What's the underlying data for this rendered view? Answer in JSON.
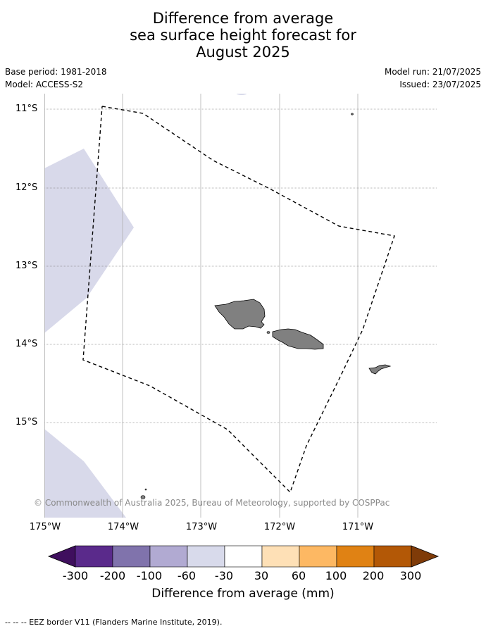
{
  "title": {
    "line1": "Difference from average",
    "line2": "sea surface height forecast for",
    "line3": "August 2025"
  },
  "meta": {
    "base_period": "Base period: 1981-2018",
    "model": "Model: ACCESS-S2",
    "model_run": "Model run: 21/07/2025",
    "issued": "Issued: 23/07/2025"
  },
  "map": {
    "lat_labels": [
      "11°S",
      "12°S",
      "13°S",
      "14°S",
      "15°S"
    ],
    "lon_labels": [
      "175°W",
      "174°W",
      "173°W",
      "172°W",
      "171°W"
    ],
    "copyright": "© Commonwealth of Australia 2025, Bureau of Meteorology, supported by COSPPac",
    "land_color": "#808080",
    "anomaly_color": "#d8d9ea",
    "eez_border_style": "dashed"
  },
  "colorbar": {
    "title": "Difference from average (mm)",
    "tick_labels": [
      "-300",
      "-200",
      "-100",
      "-60",
      "-30",
      "30",
      "60",
      "100",
      "200",
      "300"
    ],
    "colors": [
      "#3f0f5e",
      "#5a2a8b",
      "#8073ac",
      "#b1aad2",
      "#d8daeb",
      "#ffffff",
      "#fee0b6",
      "#fdb863",
      "#e08214",
      "#b35806",
      "#7f3b08"
    ]
  },
  "footer": {
    "note": "--  --  -- EEZ border V11 (Flanders Marine Institute, 2019)."
  }
}
